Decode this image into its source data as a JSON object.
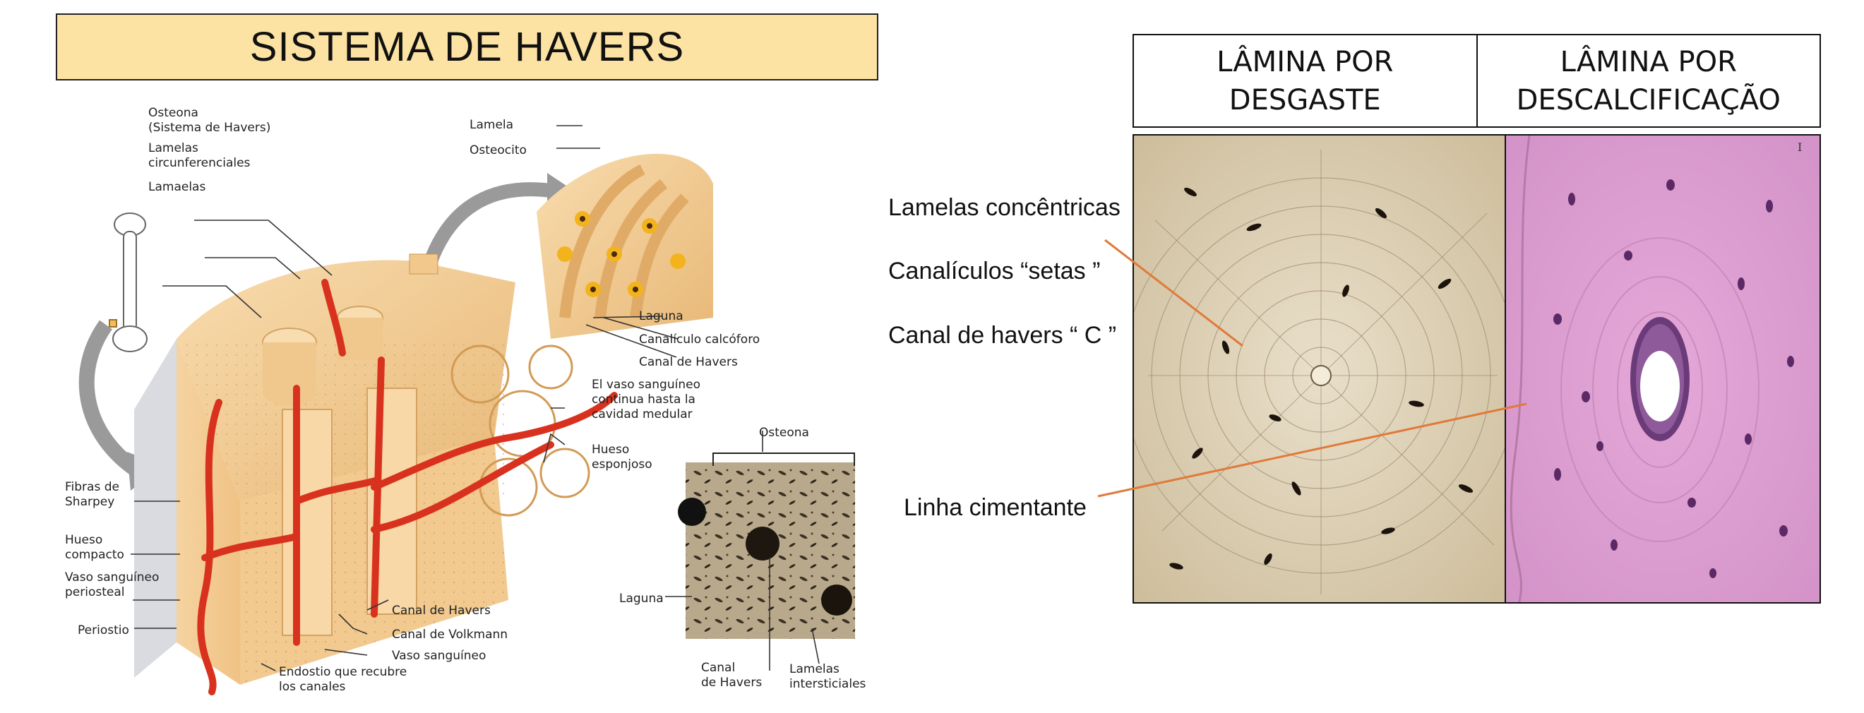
{
  "title": "SISTEMA DE HAVERS",
  "left_diagram": {
    "labels": {
      "osteona": "Osteona\n(Sistema de Havers)",
      "lamelas_circ": "Lamelas\ncircunferenciales",
      "lamaelas": "Lamaelas",
      "lamela": "Lamela",
      "osteocito": "Osteocito",
      "laguna_top": "Laguna",
      "canaliculo": "Canalículo calcóforo",
      "canal_havers_top": "Canal de Havers",
      "vaso_cont": "El vaso sanguíneo\ncontinua hasta la\ncavidad medular",
      "hueso_esponjoso": "Hueso\nesponjoso",
      "fibras_sharpey": "Fibras de\nSharpey",
      "hueso_compacto": "Hueso\ncompacto",
      "vaso_periosteal": "Vaso sanguíneo\nperiosteal",
      "periostio": "Periostio",
      "canal_havers_bottom": "Canal de Havers",
      "canal_volkmann": "Canal de Volkmann",
      "vaso_sanguineo": "Vaso sanguíneo",
      "endostio": "Endostio que recubre\nlos canales",
      "osteona_inset": "Osteona",
      "laguna_inset": "Laguna",
      "canal_havers_inset": "Canal\nde Havers",
      "lamelas_intersticiales": "Lamelas\nintersticiales"
    }
  },
  "right_panel": {
    "col1_header": "LÂMINA POR\nDESGASTE",
    "col2_header": "LÂMINA POR\nDESCALCIFICAÇÃO",
    "annotations": {
      "lamelas": "Lamelas concêntricas",
      "canaliculos": "Canalículos “setas ”",
      "canal": "Canal de havers “ C ”",
      "linha": "Linha cimentante"
    },
    "scale_mark": "I"
  },
  "colors": {
    "banner": "#fde3a3",
    "bone": "#f3cf97",
    "vessel": "#d8321f",
    "arrow": "#e07a3a",
    "stain": "#d99ad0"
  }
}
